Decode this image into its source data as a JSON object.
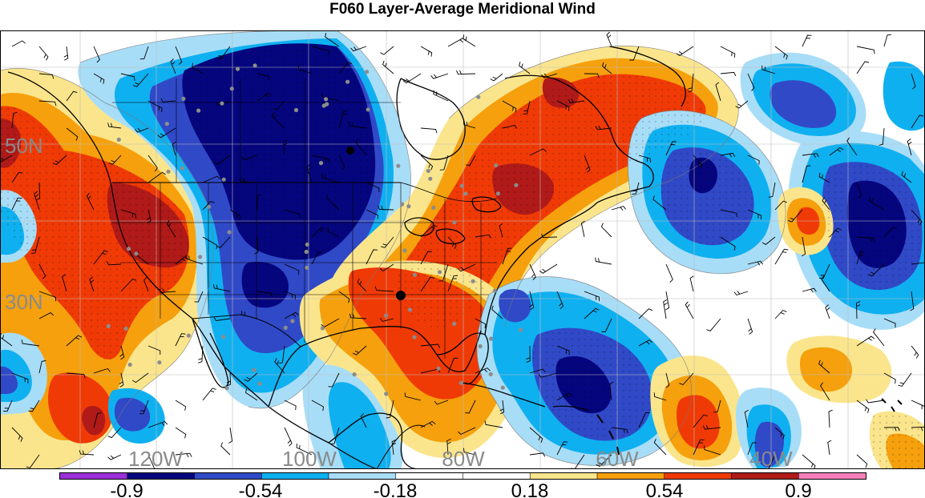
{
  "title": "F060 Layer-Average Meridional Wind",
  "map": {
    "lat_labels": [
      "50N",
      "30N"
    ],
    "lon_labels": [
      "120W",
      "100W",
      "80W",
      "60W",
      "40W"
    ],
    "label_color": "#8a8a8a",
    "basemap": "North America and western Atlantic, country/state borders, wind barbs, surface stations"
  },
  "colorbar": {
    "colors": [
      "#9b30d8",
      "#05057e",
      "#3049c7",
      "#0fb0f0",
      "#a8ddf7",
      "#ffffff",
      "#ffffff",
      "#fbe58c",
      "#f5a00c",
      "#f03a05",
      "#b01a18",
      "#f47fbc"
    ],
    "tick_labels": [
      "-0.9",
      "-0.54",
      "-0.18",
      "0.18",
      "0.54",
      "0.9"
    ]
  },
  "chart_data": {
    "type": "heatmap",
    "title": "F060 Layer-Average Meridional Wind",
    "levels": [
      -1.08,
      -0.9,
      -0.72,
      -0.54,
      -0.36,
      -0.18,
      0,
      0.18,
      0.36,
      0.54,
      0.72,
      0.9,
      1.08
    ],
    "colorbar_ticks": [
      -0.9,
      -0.54,
      -0.18,
      0.18,
      0.54,
      0.9
    ],
    "x_tick_labels": [
      "120W",
      "100W",
      "80W",
      "60W",
      "40W"
    ],
    "y_tick_labels": [
      "50N",
      "30N"
    ],
    "fields": [
      {
        "region": "Pacific Northwest / Great Basin",
        "value": 0.9
      },
      {
        "region": "Northern Plains / Canadian Prairies",
        "value": -0.9
      },
      {
        "region": "Great Lakes / Northeast US / Eastern Canada",
        "value": 0.72
      },
      {
        "region": "Southeast US / Gulf coast",
        "value": 0.72
      },
      {
        "region": "Southern Plains / Texas",
        "value": -0.54
      },
      {
        "region": "Western Atlantic near 25N 65W",
        "value": -0.9
      },
      {
        "region": "North Atlantic near 45N 42W",
        "value": -0.9
      },
      {
        "region": "Central Atlantic near 22N 50W",
        "value": 0.72
      },
      {
        "region": "Eastern Pacific near 20N 130W",
        "value": 0.9
      }
    ]
  }
}
